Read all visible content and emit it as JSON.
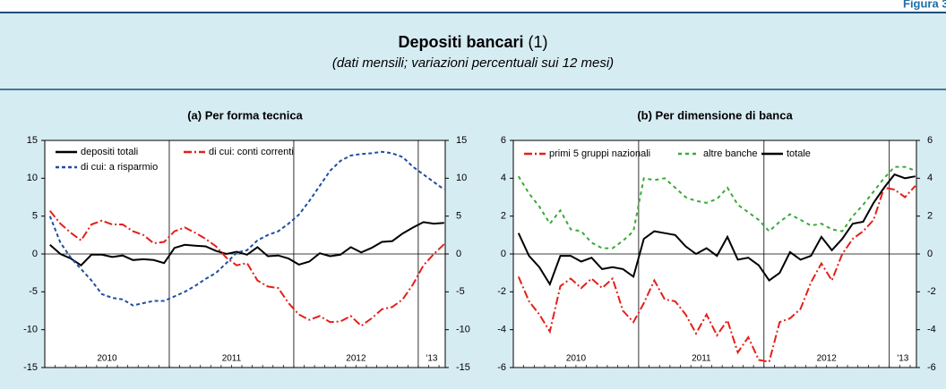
{
  "header": {
    "figure_label": "Figura 3.",
    "title": "Depositi bancari",
    "title_note": "(1)",
    "subtitle": "(dati mensili; variazioni percentuali sui 12 mesi)"
  },
  "chart_data": [
    {
      "type": "line",
      "title": "(a) Per forma tecnica",
      "xlabels": [
        "2010",
        "2011",
        "2012",
        "'13"
      ],
      "ylim": [
        -15,
        15
      ],
      "yticks": [
        -15,
        -10,
        -5,
        0,
        5,
        10,
        15
      ],
      "y2lim": [
        -15,
        15
      ],
      "y2ticks": [
        -15,
        -10,
        -5,
        0,
        5,
        10,
        15
      ],
      "series": [
        {
          "name": "depositi totali",
          "color": "#000000",
          "style": "solid",
          "values": [
            1.2,
            0.0,
            -0.6,
            -1.5,
            -0.1,
            -0.1,
            -0.4,
            -0.2,
            -0.8,
            -0.7,
            -0.8,
            -1.2,
            0.8,
            1.2,
            1.1,
            1.0,
            0.4,
            0.0,
            0.3,
            -0.1,
            0.9,
            -0.3,
            -0.2,
            -0.6,
            -1.4,
            -1.0,
            0.1,
            -0.3,
            -0.1,
            0.9,
            0.2,
            0.8,
            1.6,
            1.7,
            2.7,
            3.5,
            4.2,
            4.0,
            4.1
          ]
        },
        {
          "name": "di cui: conti correnti",
          "color": "#e32119",
          "style": "dashdot",
          "values": [
            5.7,
            4.0,
            2.8,
            1.8,
            3.9,
            4.4,
            3.9,
            3.9,
            3.0,
            2.5,
            1.4,
            1.6,
            3.0,
            3.5,
            2.8,
            2.0,
            1.0,
            -0.5,
            -1.5,
            -1.2,
            -3.5,
            -4.3,
            -4.5,
            -6.5,
            -8.0,
            -8.7,
            -8.2,
            -9.0,
            -8.9,
            -8.2,
            -9.5,
            -8.5,
            -7.3,
            -7.0,
            -6.0,
            -4.0,
            -1.5,
            0.0,
            1.3
          ]
        },
        {
          "name": "di cui: a risparmio",
          "color": "#1f4fa0",
          "style": "dashed",
          "values": [
            5.0,
            1.5,
            -0.5,
            -2.0,
            -3.5,
            -5.3,
            -5.8,
            -6.0,
            -6.8,
            -6.5,
            -6.2,
            -6.2,
            -5.6,
            -5.0,
            -4.2,
            -3.3,
            -2.5,
            -1.2,
            0.2,
            0.5,
            1.8,
            2.5,
            3.0,
            4.0,
            5.2,
            7.0,
            9.0,
            11.0,
            12.3,
            13.0,
            13.2,
            13.3,
            13.5,
            13.3,
            12.8,
            11.5,
            10.5,
            9.5,
            8.5
          ]
        }
      ]
    },
    {
      "type": "line",
      "title": "(b) Per dimensione di banca",
      "xlabels": [
        "2010",
        "2011",
        "2012",
        "'13"
      ],
      "ylim": [
        -6,
        6
      ],
      "yticks": [
        -6,
        -4,
        -2,
        0,
        2,
        4,
        6
      ],
      "y2lim": [
        -6,
        6
      ],
      "y2ticks": [
        -6,
        -4,
        -2,
        0,
        2,
        4,
        6
      ],
      "series": [
        {
          "name": "primi 5 gruppi nazionali",
          "color": "#e32119",
          "style": "dashdot",
          "values": [
            -1.2,
            -2.5,
            -3.2,
            -4.1,
            -1.7,
            -1.3,
            -1.8,
            -1.3,
            -1.8,
            -1.3,
            -3.0,
            -3.6,
            -2.6,
            -1.4,
            -2.4,
            -2.5,
            -3.2,
            -4.2,
            -3.2,
            -4.3,
            -3.5,
            -5.2,
            -4.4,
            -5.6,
            -5.7,
            -3.6,
            -3.4,
            -2.9,
            -1.5,
            -0.5,
            -1.4,
            0.0,
            0.8,
            1.2,
            1.8,
            3.5,
            3.4,
            3.0,
            3.6
          ]
        },
        {
          "name": "altre banche",
          "color": "#3aaa35",
          "style": "dotted",
          "values": [
            4.1,
            3.2,
            2.5,
            1.6,
            2.3,
            1.3,
            1.2,
            0.6,
            0.3,
            0.3,
            0.7,
            1.2,
            4.0,
            3.9,
            4.0,
            3.5,
            3.0,
            2.8,
            2.7,
            2.9,
            3.5,
            2.6,
            2.2,
            1.8,
            1.2,
            1.7,
            2.1,
            1.8,
            1.5,
            1.6,
            1.3,
            1.2,
            2.0,
            2.6,
            3.3,
            4.0,
            4.6,
            4.6,
            4.4
          ]
        },
        {
          "name": "totale",
          "color": "#000000",
          "style": "solid",
          "values": [
            1.1,
            -0.1,
            -0.7,
            -1.6,
            -0.1,
            -0.1,
            -0.4,
            -0.2,
            -0.8,
            -0.7,
            -0.8,
            -1.2,
            0.8,
            1.2,
            1.1,
            1.0,
            0.4,
            0.0,
            0.3,
            -0.1,
            0.9,
            -0.3,
            -0.2,
            -0.6,
            -1.4,
            -1.0,
            0.1,
            -0.3,
            -0.1,
            0.9,
            0.2,
            0.8,
            1.6,
            1.7,
            2.7,
            3.5,
            4.2,
            4.0,
            4.1
          ]
        }
      ]
    }
  ]
}
